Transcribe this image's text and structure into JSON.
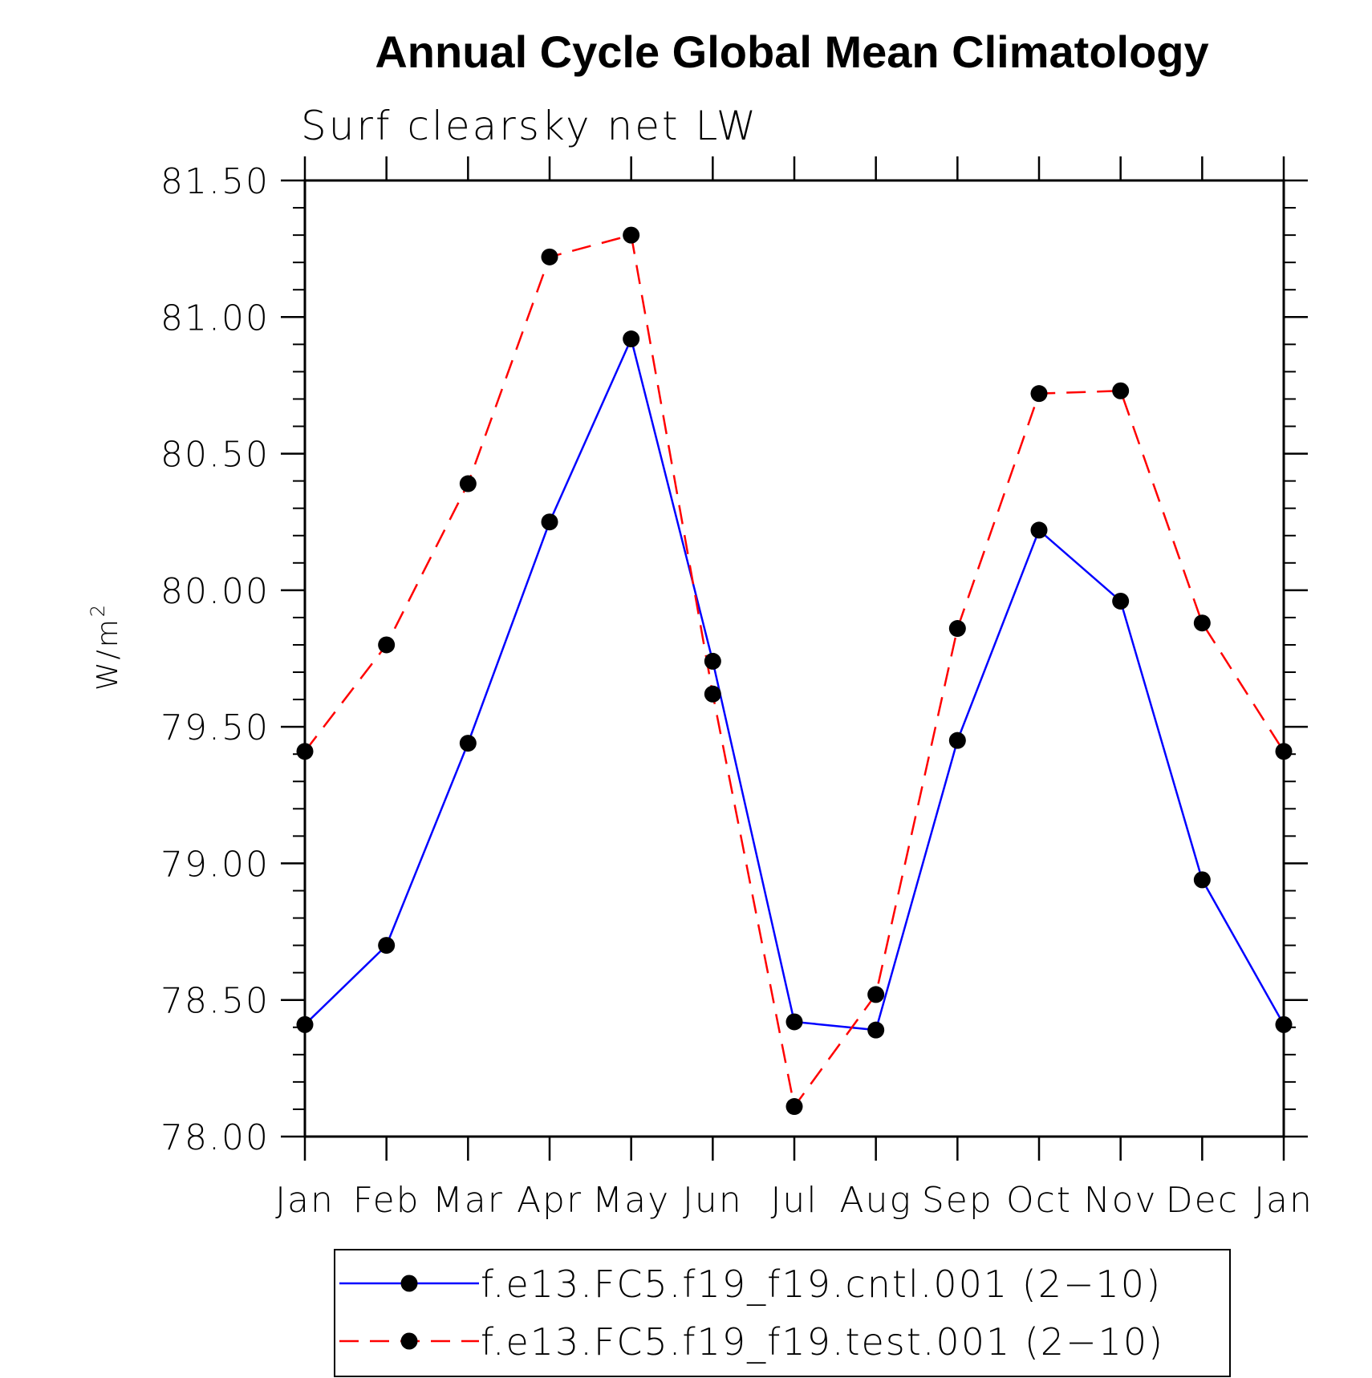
{
  "chart_data": {
    "type": "line",
    "title": "Annual Cycle Global Mean Climatology",
    "subtitle": "Surf clearsky net LW",
    "ylabel": "W/m",
    "ylabel_sup": "2",
    "categories": [
      "Jan",
      "Feb",
      "Mar",
      "Apr",
      "May",
      "Jun",
      "Jul",
      "Aug",
      "Sep",
      "Oct",
      "Nov",
      "Dec",
      "Jan"
    ],
    "ylim": [
      78.0,
      81.5
    ],
    "yticks": [
      "78.00",
      "78.50",
      "79.00",
      "79.50",
      "80.00",
      "80.50",
      "81.00",
      "81.50"
    ],
    "series": [
      {
        "name": "f.e13.FC5.f19_f19.cntl.001 (2−10)",
        "color": "#0000ff",
        "dash": "solid",
        "values": [
          78.41,
          78.7,
          79.44,
          80.25,
          80.92,
          79.74,
          78.42,
          78.39,
          79.45,
          80.22,
          79.96,
          78.94,
          78.41
        ]
      },
      {
        "name": "f.e13.FC5.f19_f19.test.001 (2−10)",
        "color": "#ff0000",
        "dash": "dashed",
        "values": [
          79.41,
          79.8,
          80.39,
          81.22,
          81.3,
          79.62,
          78.11,
          78.52,
          79.86,
          80.72,
          80.73,
          79.88,
          79.41
        ]
      }
    ],
    "legend_position": "bottom"
  }
}
